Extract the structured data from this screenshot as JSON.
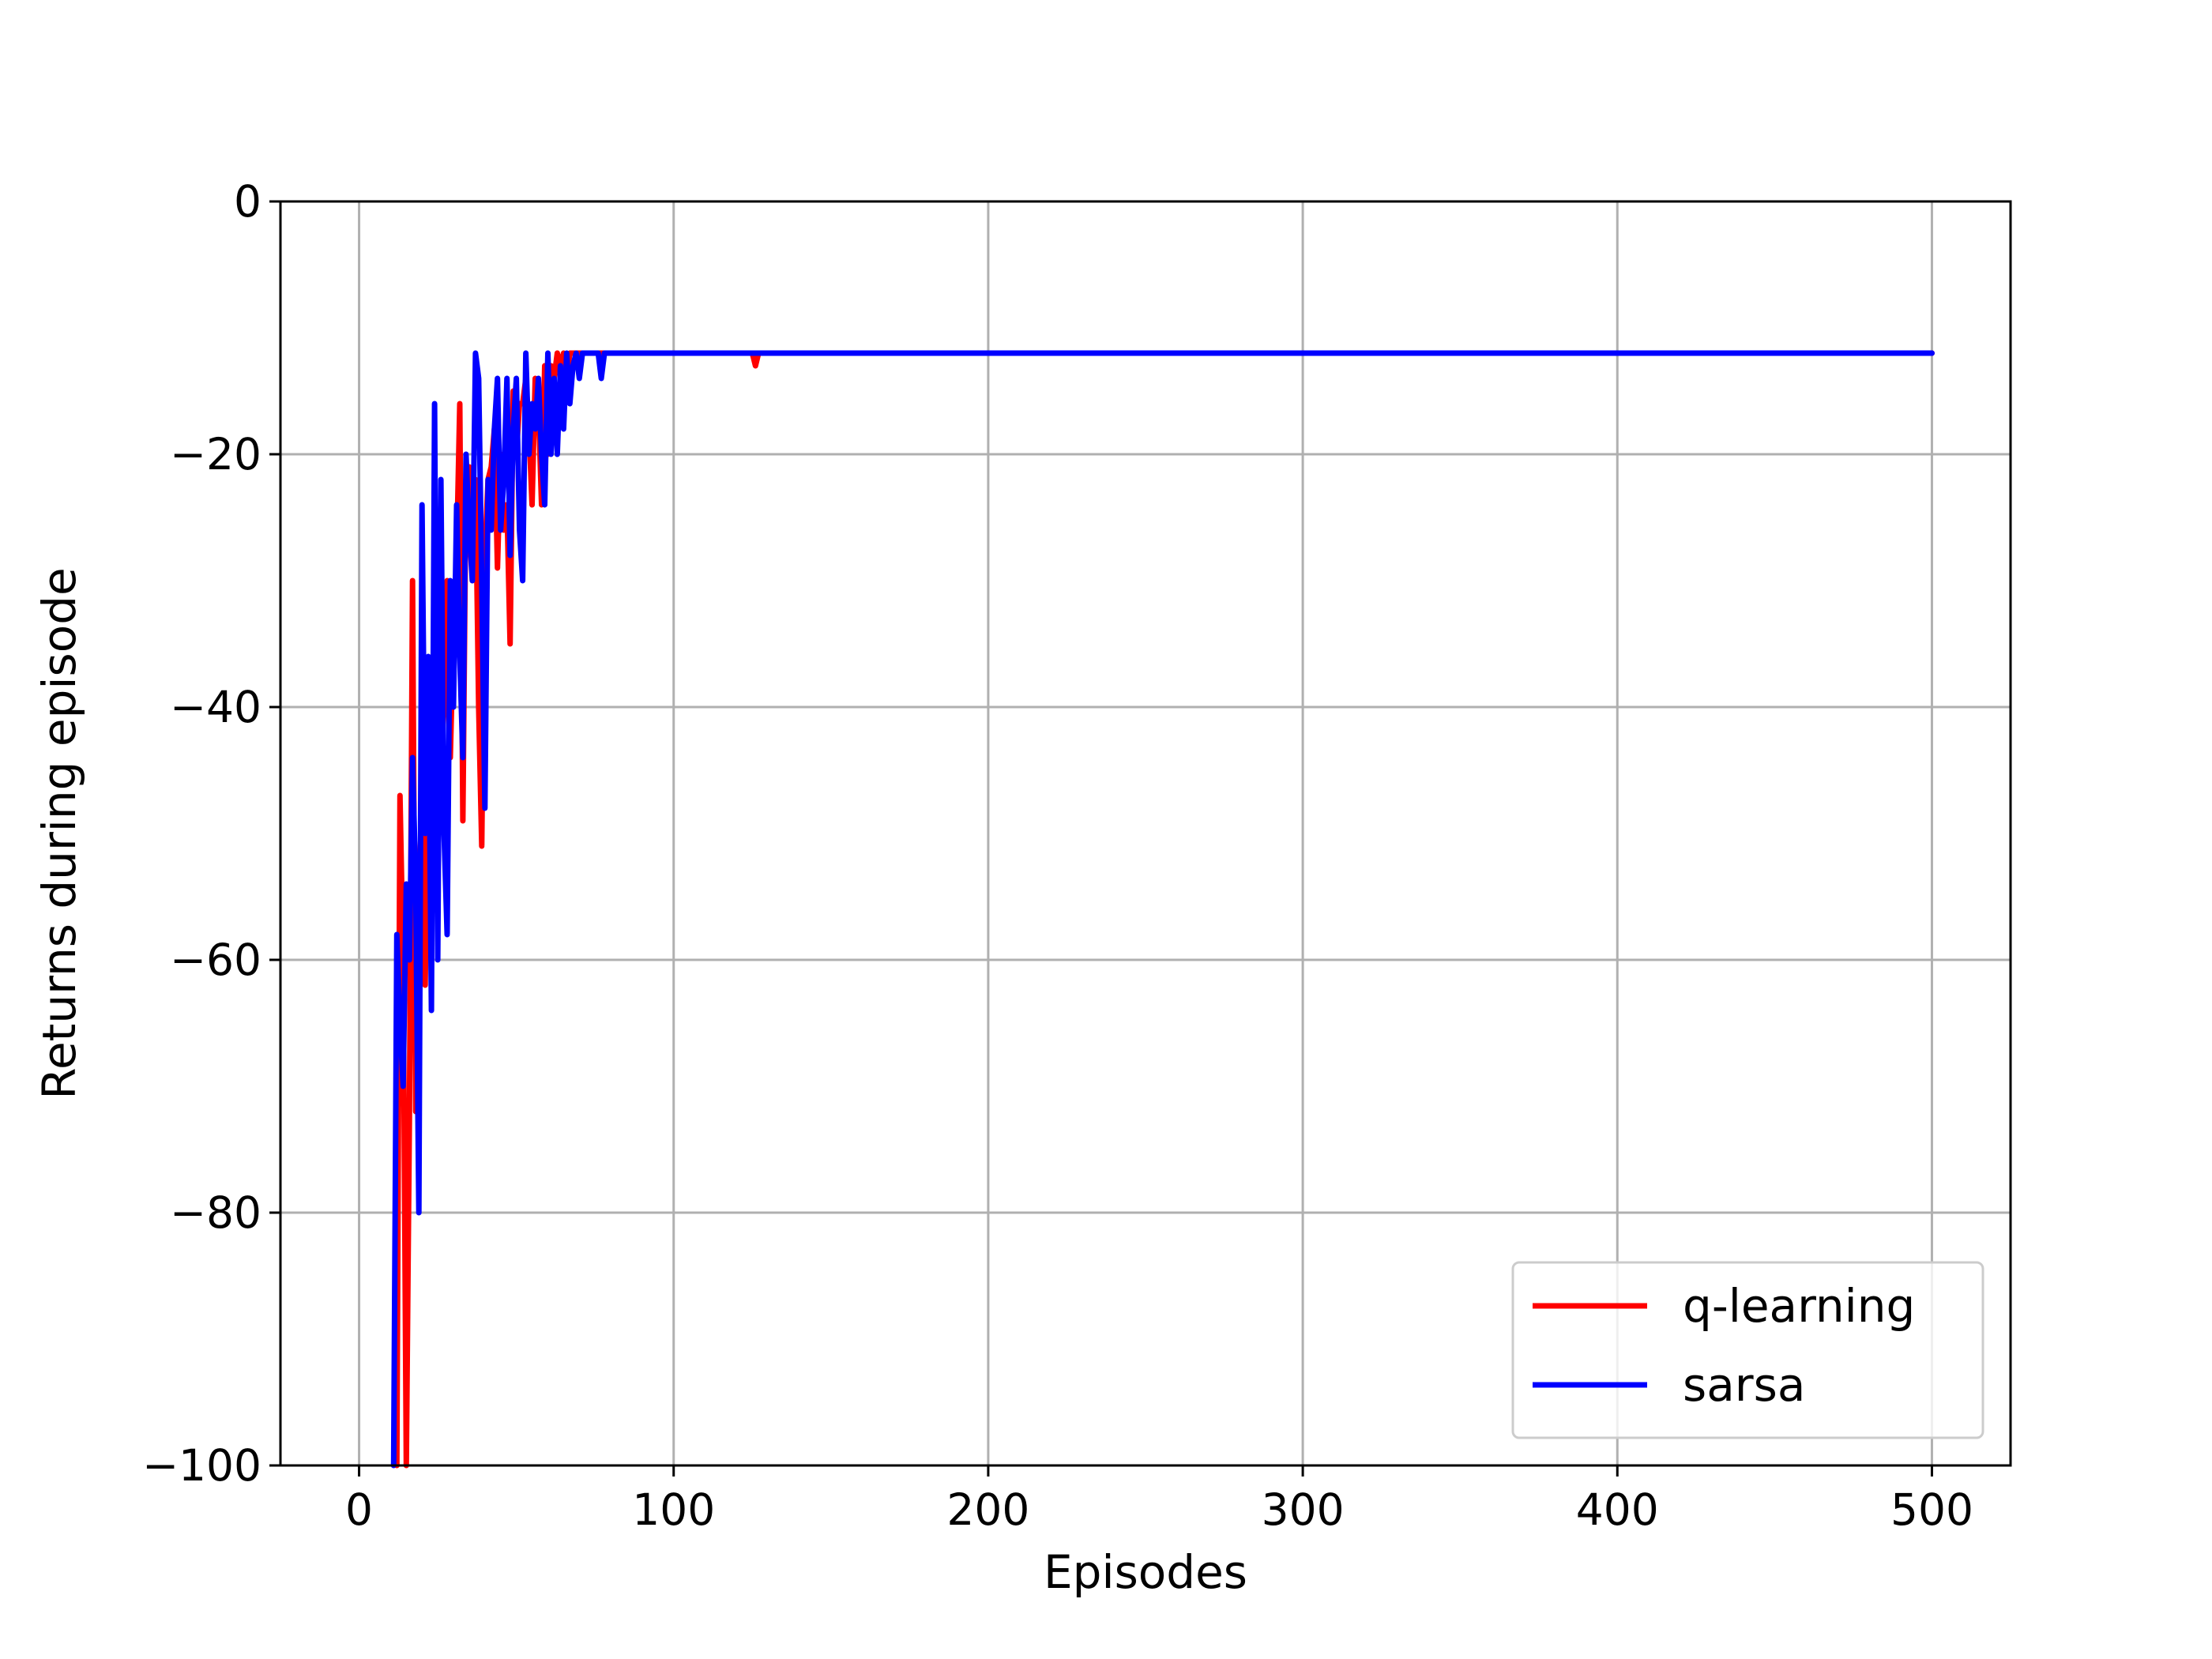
{
  "chart_data": {
    "type": "line",
    "title": "",
    "xlabel": "Episodes",
    "ylabel": "Returns during episode",
    "xlim": [
      -25,
      525
    ],
    "ylim": [
      -100,
      0
    ],
    "xticks": [
      0,
      100,
      200,
      300,
      400,
      500
    ],
    "yticks": [
      0,
      -20,
      -40,
      -60,
      -80,
      -100
    ],
    "xtick_labels": [
      "0",
      "100",
      "200",
      "300",
      "400",
      "500"
    ],
    "ytick_labels": [
      "0",
      "−20",
      "−40",
      "−60",
      "−80",
      "−100"
    ],
    "grid": true,
    "legend_position": "lower-right",
    "series": [
      {
        "name": "q-learning",
        "color": "#ff0000",
        "points": [
          [
            12,
            -100
          ],
          [
            13,
            -47
          ],
          [
            14,
            -60
          ],
          [
            15,
            -100
          ],
          [
            16,
            -72
          ],
          [
            17,
            -30
          ],
          [
            18,
            -72
          ],
          [
            19,
            -54
          ],
          [
            20,
            -48
          ],
          [
            21,
            -62
          ],
          [
            22,
            -44
          ],
          [
            23,
            -52
          ],
          [
            24,
            -38
          ],
          [
            25,
            -34
          ],
          [
            26,
            -45
          ],
          [
            27,
            -40
          ],
          [
            28,
            -30
          ],
          [
            29,
            -44
          ],
          [
            30,
            -34
          ],
          [
            31,
            -28
          ],
          [
            32,
            -16
          ],
          [
            33,
            -49
          ],
          [
            34,
            -22
          ],
          [
            35,
            -21
          ],
          [
            36,
            -30
          ],
          [
            37,
            -22
          ],
          [
            38,
            -40
          ],
          [
            39,
            -51
          ],
          [
            40,
            -28
          ],
          [
            41,
            -22
          ],
          [
            42,
            -21
          ],
          [
            43,
            -18
          ],
          [
            44,
            -29
          ],
          [
            45,
            -20
          ],
          [
            46,
            -26
          ],
          [
            47,
            -24
          ],
          [
            48,
            -35
          ],
          [
            49,
            -15
          ],
          [
            50,
            -20
          ],
          [
            51,
            -16
          ],
          [
            52,
            -16
          ],
          [
            53,
            -14
          ],
          [
            54,
            -18
          ],
          [
            55,
            -24
          ],
          [
            56,
            -14
          ],
          [
            57,
            -16
          ],
          [
            58,
            -24
          ],
          [
            59,
            -13
          ],
          [
            60,
            -20
          ],
          [
            61,
            -13
          ],
          [
            62,
            -14
          ],
          [
            63,
            -12
          ],
          [
            64,
            -13
          ],
          [
            65,
            -12
          ],
          [
            66,
            -14
          ],
          [
            67,
            -12
          ],
          [
            68,
            -12
          ],
          [
            70,
            -12
          ],
          [
            100,
            -12
          ],
          [
            125,
            -12
          ],
          [
            126,
            -13
          ],
          [
            127,
            -12
          ],
          [
            130,
            -12
          ],
          [
            200,
            -12
          ],
          [
            300,
            -12
          ],
          [
            400,
            -12
          ],
          [
            500,
            -12
          ]
        ]
      },
      {
        "name": "sarsa",
        "color": "#0000ff",
        "points": [
          [
            11,
            -100
          ],
          [
            12,
            -58
          ],
          [
            13,
            -65
          ],
          [
            14,
            -70
          ],
          [
            15,
            -54
          ],
          [
            16,
            -60
          ],
          [
            17,
            -44
          ],
          [
            18,
            -54
          ],
          [
            19,
            -80
          ],
          [
            20,
            -24
          ],
          [
            21,
            -50
          ],
          [
            22,
            -36
          ],
          [
            23,
            -64
          ],
          [
            24,
            -16
          ],
          [
            25,
            -60
          ],
          [
            26,
            -22
          ],
          [
            27,
            -50
          ],
          [
            28,
            -58
          ],
          [
            29,
            -30
          ],
          [
            30,
            -40
          ],
          [
            31,
            -24
          ],
          [
            32,
            -36
          ],
          [
            33,
            -44
          ],
          [
            34,
            -20
          ],
          [
            35,
            -26
          ],
          [
            36,
            -30
          ],
          [
            37,
            -12
          ],
          [
            38,
            -14
          ],
          [
            39,
            -30
          ],
          [
            40,
            -48
          ],
          [
            41,
            -22
          ],
          [
            42,
            -26
          ],
          [
            43,
            -18
          ],
          [
            44,
            -14
          ],
          [
            45,
            -26
          ],
          [
            46,
            -22
          ],
          [
            47,
            -14
          ],
          [
            48,
            -28
          ],
          [
            49,
            -18
          ],
          [
            50,
            -14
          ],
          [
            51,
            -26
          ],
          [
            52,
            -30
          ],
          [
            53,
            -12
          ],
          [
            54,
            -20
          ],
          [
            55,
            -16
          ],
          [
            56,
            -18
          ],
          [
            57,
            -14
          ],
          [
            58,
            -20
          ],
          [
            59,
            -24
          ],
          [
            60,
            -12
          ],
          [
            61,
            -20
          ],
          [
            62,
            -14
          ],
          [
            63,
            -20
          ],
          [
            64,
            -13
          ],
          [
            65,
            -18
          ],
          [
            66,
            -12
          ],
          [
            67,
            -16
          ],
          [
            68,
            -13
          ],
          [
            69,
            -12
          ],
          [
            70,
            -14
          ],
          [
            71,
            -12
          ],
          [
            76,
            -12
          ],
          [
            77,
            -14
          ],
          [
            78,
            -12
          ],
          [
            100,
            -12
          ],
          [
            200,
            -12
          ],
          [
            300,
            -12
          ],
          [
            400,
            -12
          ],
          [
            500,
            -12
          ]
        ]
      }
    ]
  }
}
